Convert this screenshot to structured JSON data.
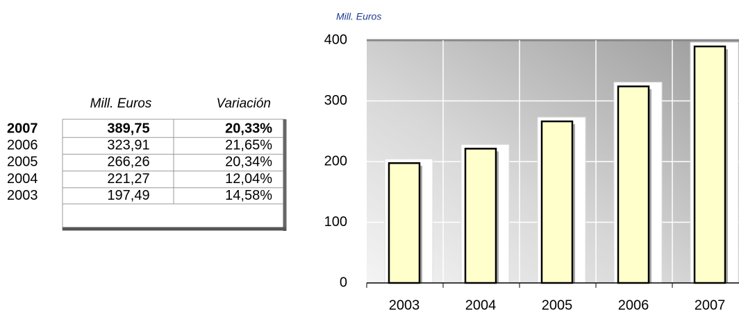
{
  "table": {
    "headers": [
      "Mill. Euros",
      "Variación"
    ],
    "rows": [
      [
        "2007",
        "389,75",
        "20,33%"
      ],
      [
        "2006",
        "323,91",
        "21,65%"
      ],
      [
        "2005",
        "266,26",
        "20,34%"
      ],
      [
        "2004",
        "221,27",
        "12,04%"
      ],
      [
        "2003",
        "197,49",
        "14,58%"
      ]
    ]
  },
  "chart_data": {
    "type": "bar",
    "y_label": "Mill. Euros",
    "categories": [
      "2003",
      "2004",
      "2005",
      "2006",
      "2007"
    ],
    "values": [
      197.49,
      221.27,
      266.26,
      323.91,
      389.75
    ],
    "color": "#ffffcc",
    "ylim": [
      0,
      400
    ],
    "yticks": [
      0,
      100,
      200,
      300,
      400
    ],
    "grid": true
  }
}
